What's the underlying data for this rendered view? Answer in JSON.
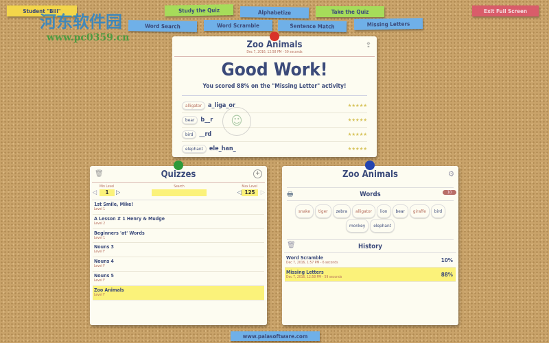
{
  "watermark": {
    "title": "河东软件园",
    "url": "www.pc0359.cn"
  },
  "toolbar": {
    "student": "Student \"Bill\"",
    "study": "Study the Quiz",
    "alphabetize": "Alphabetize",
    "take": "Take the Quiz",
    "exit": "Exit Full Screen",
    "word_search": "Word Search",
    "word_scramble": "Word Scramble",
    "sentence_match": "Sentence Match",
    "missing_letters": "Missing Letters"
  },
  "result": {
    "title": "Zoo Animals",
    "subtitle": "Dec 7, 2016, 12:58 PM - 59 seconds",
    "headline": "Good Work!",
    "message": "You scored 88% on the \"Missing Letter\" activity!",
    "items": [
      {
        "word": "alligator",
        "answer": "a_liga_or",
        "stars": "★★★★★"
      },
      {
        "word": "bear",
        "answer": "b__r",
        "stars": "★★★★★"
      },
      {
        "word": "bird",
        "answer": "__rd",
        "stars": "★★★★★"
      },
      {
        "word": "elephant",
        "answer": "ele_han_",
        "stars": "★★★★★"
      }
    ]
  },
  "quizzes": {
    "title": "Quizzes",
    "min_label": "Min Level",
    "min_value": "1",
    "search_label": "Search",
    "search_value": "",
    "max_label": "Max Level",
    "max_value": "125",
    "items": [
      {
        "name": "1st Smile, Mike!",
        "level": "Level 1"
      },
      {
        "name": "A Lesson # 1 Henry & Mudge",
        "level": "Level 2"
      },
      {
        "name": "Beginners 'at' Words",
        "level": "Level 1"
      },
      {
        "name": "Nouns 3",
        "level": "Level F"
      },
      {
        "name": "Nouns 4",
        "level": "Level F"
      },
      {
        "name": "Nouns 5",
        "level": "Level F"
      },
      {
        "name": "Zoo Animals",
        "level": "Level F"
      }
    ]
  },
  "detail": {
    "title": "Zoo Animals",
    "words_label": "Words",
    "words_count": "10",
    "words": [
      "snake",
      "tiger",
      "zebra",
      "alligator",
      "lion",
      "bear",
      "giraffe",
      "bird",
      "monkey",
      "elephant"
    ],
    "history_label": "History",
    "history": [
      {
        "name": "Word Scramble",
        "meta": "Dec 7, 2016, 1:57 PM - 6 seconds",
        "score": "10%"
      },
      {
        "name": "Missing Letters",
        "meta": "Dec 7, 2016, 12:58 PM - 59 seconds",
        "score": "88%"
      }
    ]
  },
  "footer": {
    "link": "www.palasoftware.com"
  }
}
